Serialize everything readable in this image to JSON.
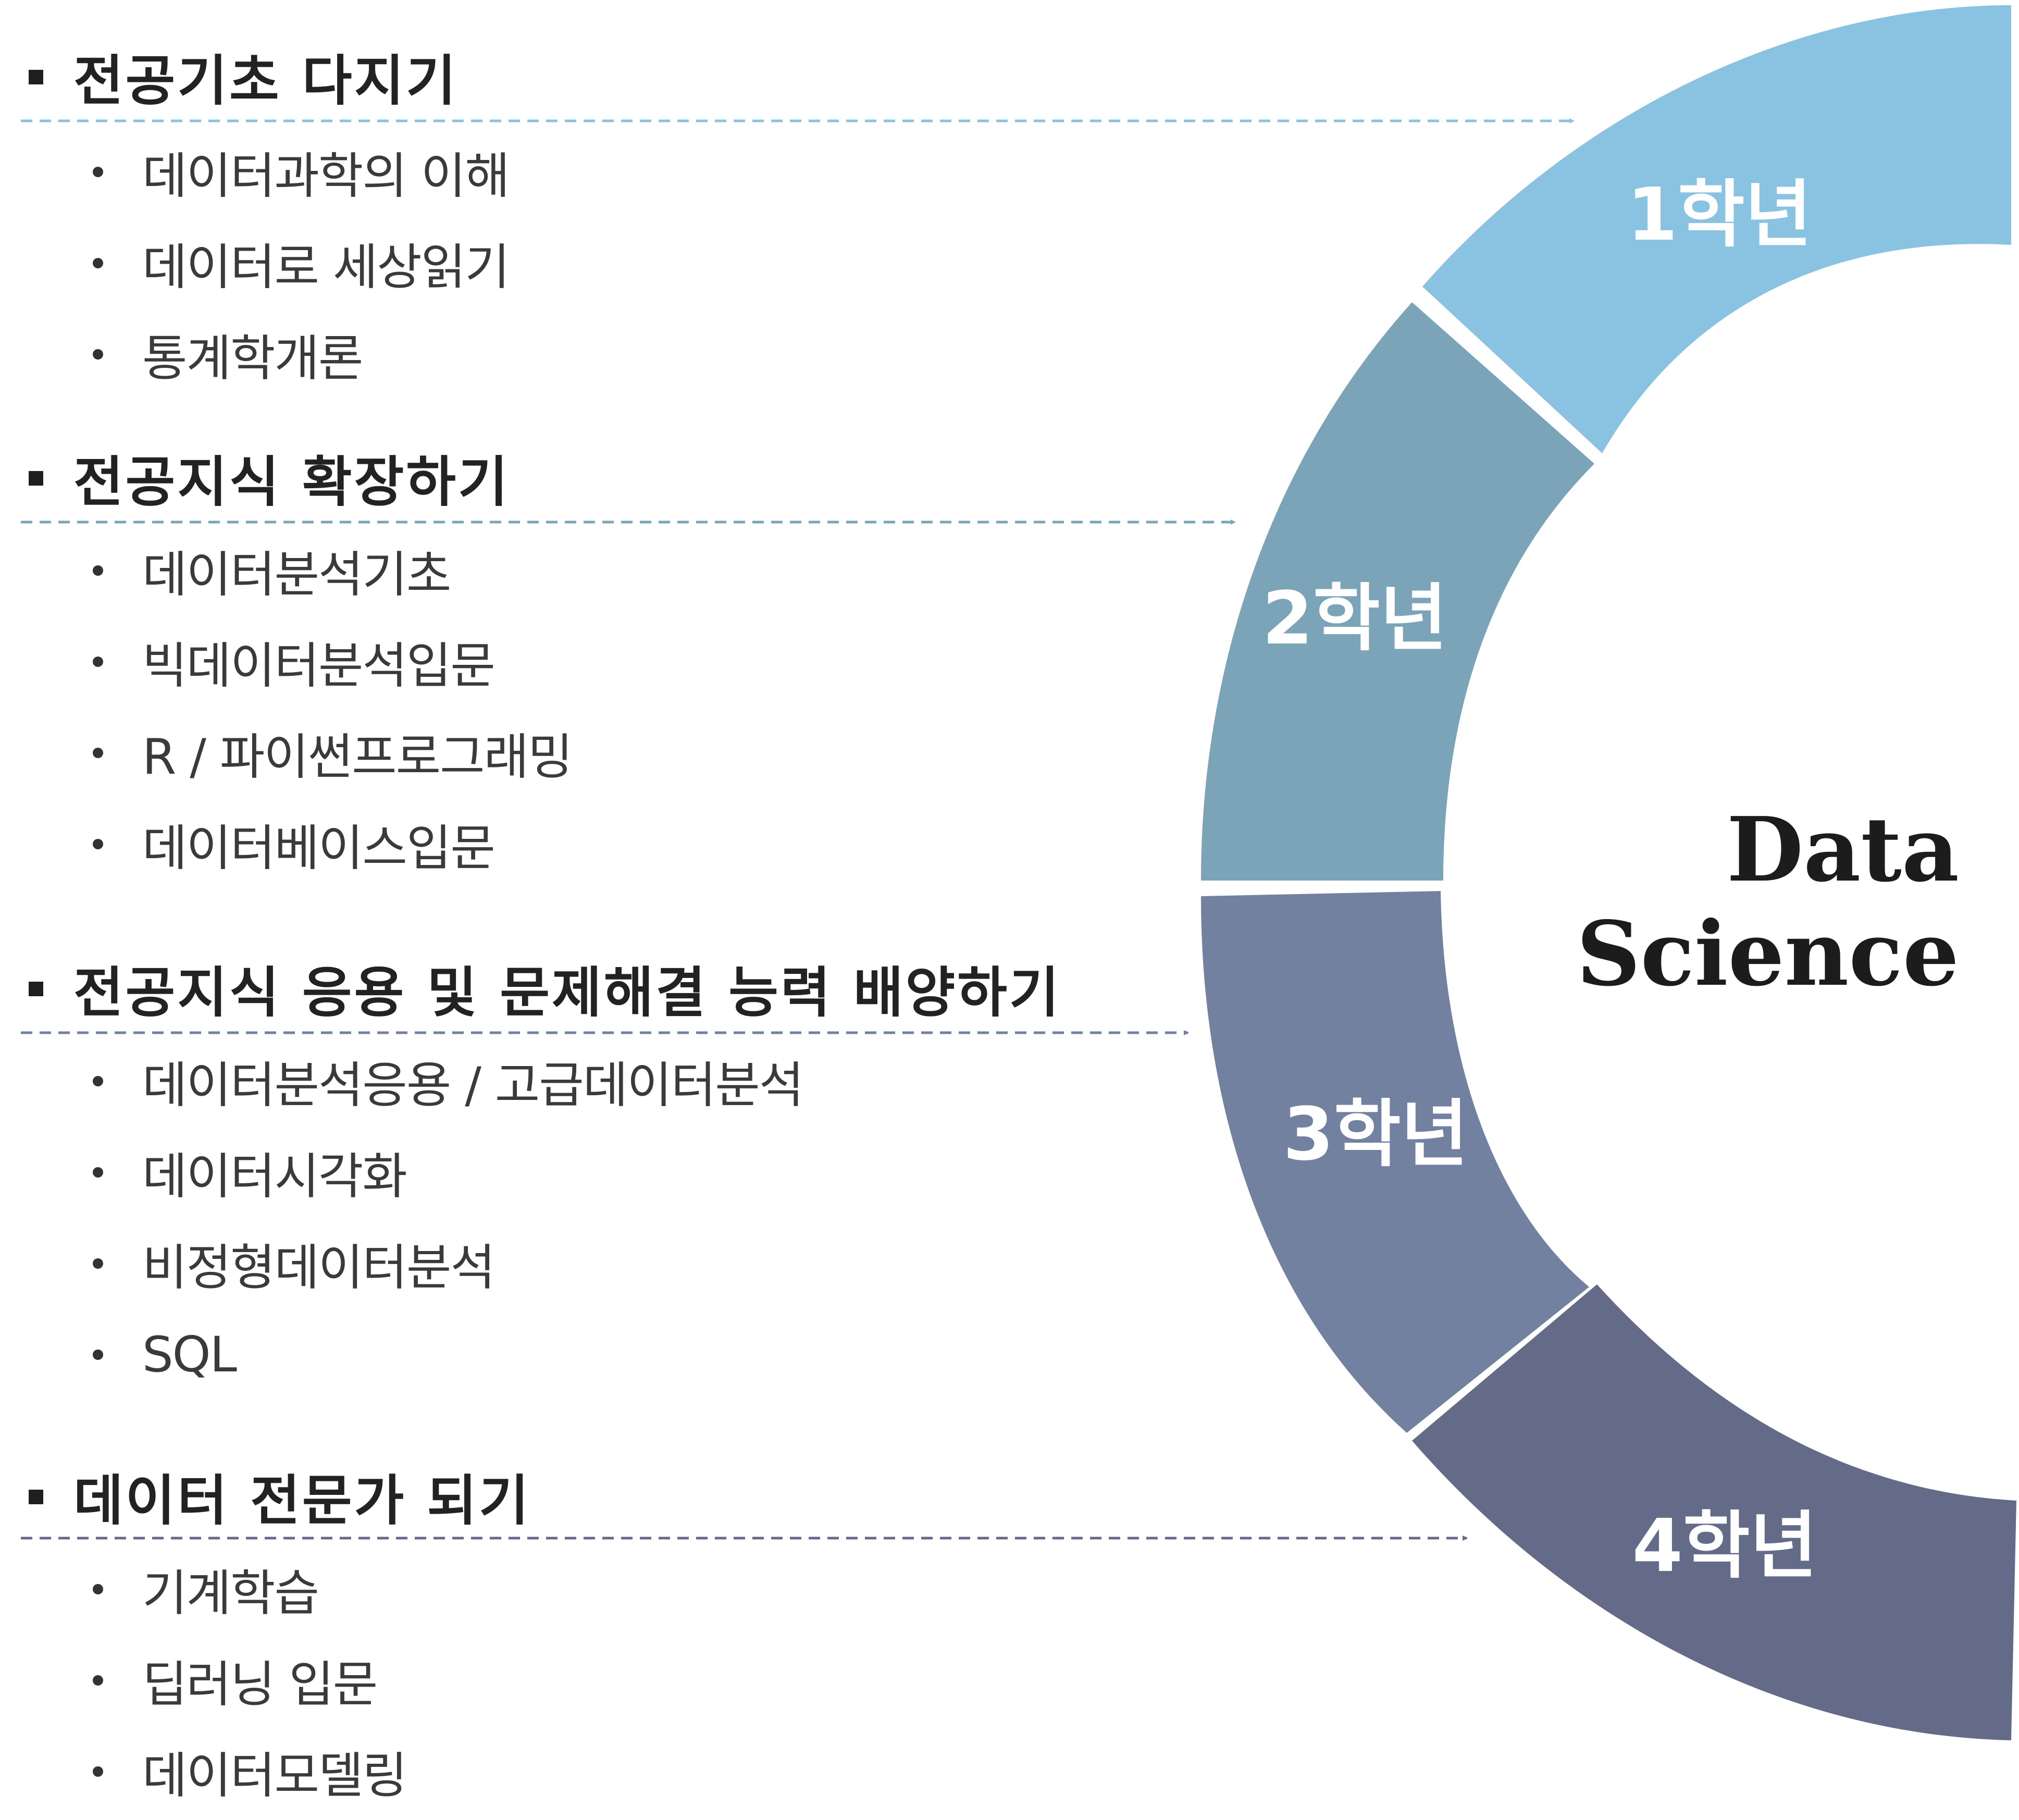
{
  "sections": [
    {
      "heading": "전공기초 다지기",
      "items": [
        "데이터과학의 이해",
        "데이터로 세상읽기",
        "통계학개론"
      ]
    },
    {
      "heading": "전공지식 확장하기",
      "items": [
        "데이터분석기초",
        "빅데이터분석입문",
        "R / 파이썬프로그래밍",
        "데이터베이스입문"
      ]
    },
    {
      "heading": "전공지식 응용 및 문제해결 능력 배양하기",
      "items": [
        "데이터분석응용 / 고급데이터분석",
        "데이터시각화",
        "비정형데이터분석",
        "SQL"
      ]
    },
    {
      "heading": "데이터 전문가 되기",
      "items": [
        "기계학습",
        "딥러닝 입문",
        "데이터모델링"
      ]
    }
  ],
  "years": [
    "1학년",
    "2학년",
    "3학년",
    "4학년"
  ],
  "center": {
    "line1": "Data",
    "line2": "Science"
  },
  "colors": {
    "year1": "#8ac2e1",
    "year2": "#7ca4b9",
    "year3": "#72819f",
    "year4": "#636b88",
    "arrow1": "#8ac2e1",
    "arrow2": "#7ca4b9",
    "arrow3": "#72819f",
    "arrow4": "#636b88"
  }
}
